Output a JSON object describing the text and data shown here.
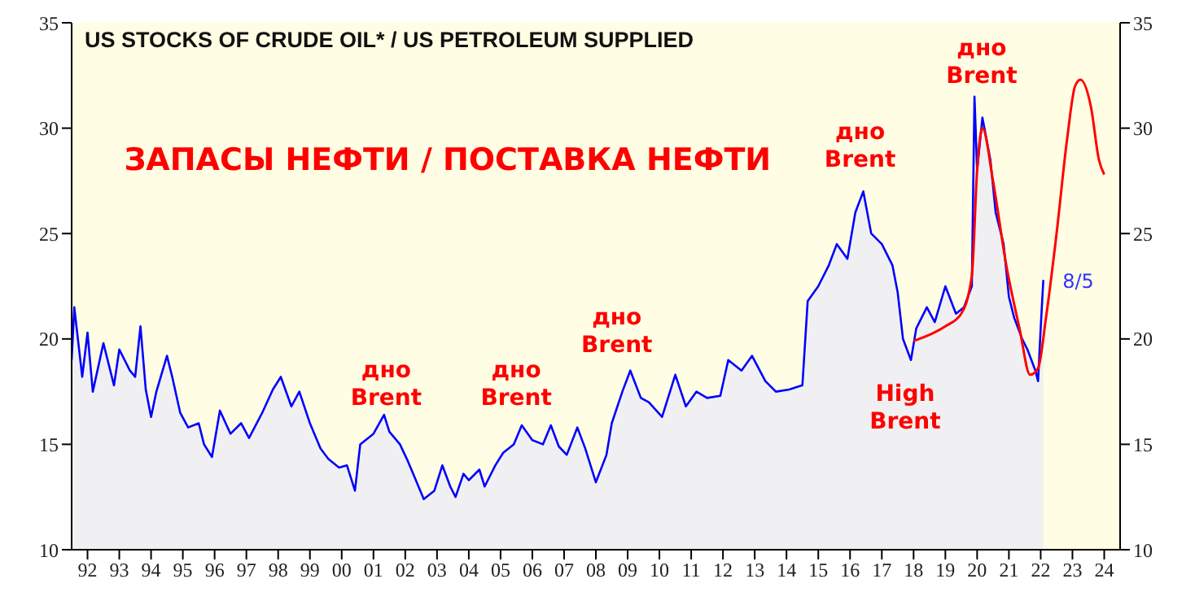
{
  "chart_data": {
    "type": "area",
    "title": "US STOCKS OF CRUDE OIL* / US PETROLEUM SUPPLIED",
    "annotations": [
      "ЗАПАСЫ НЕФТИ / ПОСТАВКА НЕФТИ",
      "дно\nBrent",
      "дно\nBrent",
      "дно\nBrent",
      "дно\nBrent",
      "дно\nBrent",
      "High\nBrent",
      "8/5"
    ],
    "xlim": [
      "1992",
      "2025"
    ],
    "xticks": [
      {
        "value": "1992-07",
        "label": "92"
      },
      {
        "value": "1993-07",
        "label": "93"
      },
      {
        "value": "1994-07",
        "label": "94"
      },
      {
        "value": "1995-07",
        "label": "95"
      },
      {
        "value": "1996-07",
        "label": "96"
      },
      {
        "value": "1997-07",
        "label": "97"
      },
      {
        "value": "1998-07",
        "label": "98"
      },
      {
        "value": "1999-07",
        "label": "99"
      },
      {
        "value": "2000-07",
        "label": "00"
      },
      {
        "value": "2001-07",
        "label": "01"
      },
      {
        "value": "2002-07",
        "label": "02"
      },
      {
        "value": "2003-07",
        "label": "03"
      },
      {
        "value": "2004-07",
        "label": "04"
      },
      {
        "value": "2005-07",
        "label": "05"
      },
      {
        "value": "2006-07",
        "label": "06"
      },
      {
        "value": "2007-07",
        "label": "07"
      },
      {
        "value": "2008-07",
        "label": "08"
      },
      {
        "value": "2009-07",
        "label": "09"
      },
      {
        "value": "2010-07",
        "label": "10"
      },
      {
        "value": "2011-07",
        "label": "11"
      },
      {
        "value": "2012-07",
        "label": "12"
      },
      {
        "value": "2013-07",
        "label": "13"
      },
      {
        "value": "2014-07",
        "label": "14"
      },
      {
        "value": "2015-07",
        "label": "15"
      },
      {
        "value": "2016-07",
        "label": "16"
      },
      {
        "value": "2017-07",
        "label": "17"
      },
      {
        "value": "2018-07",
        "label": "18"
      },
      {
        "value": "2019-07",
        "label": "19"
      },
      {
        "value": "2020-07",
        "label": "20"
      },
      {
        "value": "2021-07",
        "label": "21"
      },
      {
        "value": "2022-07",
        "label": "22"
      },
      {
        "value": "2023-07",
        "label": "23"
      },
      {
        "value": "2024-07",
        "label": "24"
      }
    ],
    "ylim": [
      10,
      35
    ],
    "yticks": [
      10,
      15,
      20,
      25,
      30,
      35
    ],
    "y2lim": [
      10,
      35
    ],
    "y2ticks": [
      10,
      15,
      20,
      25,
      30,
      35
    ],
    "grid": false,
    "legend": false,
    "series": [
      {
        "color": "#0000ff",
        "x": [
          "1992-01",
          "1992-02",
          "1992-05",
          "1992-07",
          "1992-09",
          "1993-01",
          "1993-05",
          "1993-07",
          "1993-11",
          "1994-01",
          "1994-03",
          "1994-05",
          "1994-07",
          "1994-09",
          "1995-01",
          "1995-03",
          "1995-06",
          "1995-09",
          "1996-01",
          "1996-03",
          "1996-06",
          "1996-09",
          "1997-01",
          "1997-05",
          "1997-08",
          "1998-01",
          "1998-05",
          "1998-08",
          "1998-12",
          "1999-03",
          "1999-07",
          "1999-11",
          "2000-02",
          "2000-06",
          "2000-09",
          "2000-12",
          "2001-02",
          "2001-07",
          "2001-11",
          "2002-01",
          "2002-05",
          "2002-08",
          "2002-12",
          "2003-02",
          "2003-06",
          "2003-09",
          "2003-12",
          "2004-02",
          "2004-05",
          "2004-07",
          "2004-11",
          "2005-01",
          "2005-05",
          "2005-08",
          "2005-12",
          "2006-03",
          "2006-07",
          "2006-11",
          "2007-02",
          "2007-05",
          "2007-08",
          "2007-12",
          "2008-03",
          "2008-07",
          "2008-11",
          "2009-01",
          "2009-05",
          "2009-08",
          "2009-12",
          "2010-03",
          "2010-08",
          "2011-01",
          "2011-05",
          "2011-09",
          "2012-01",
          "2012-06",
          "2012-09",
          "2013-02",
          "2013-06",
          "2013-11",
          "2014-03",
          "2014-08",
          "2015-01",
          "2015-03",
          "2015-07",
          "2015-11",
          "2016-02",
          "2016-06",
          "2016-09",
          "2016-12",
          "2017-03",
          "2017-07",
          "2017-11",
          "2018-01",
          "2018-03",
          "2018-06",
          "2018-08",
          "2018-12",
          "2019-03",
          "2019-07",
          "2019-11",
          "2020-02",
          "2020-05",
          "2020-06",
          "2020-07",
          "2020-09",
          "2020-12",
          "2021-02",
          "2021-05",
          "2021-07",
          "2021-09",
          "2021-12",
          "2022-02",
          "2022-05",
          "2022-06",
          "2022-07",
          "2022-08"
        ],
        "values": [
          19.0,
          21.5,
          18.2,
          20.3,
          17.5,
          19.8,
          17.8,
          19.5,
          18.5,
          18.2,
          20.6,
          17.6,
          16.3,
          17.5,
          19.2,
          18.2,
          16.5,
          15.8,
          16.0,
          15.0,
          14.4,
          16.6,
          15.5,
          16.0,
          15.3,
          16.5,
          17.6,
          18.2,
          16.8,
          17.5,
          16.0,
          14.8,
          14.3,
          13.9,
          14.0,
          12.8,
          15.0,
          15.5,
          16.4,
          15.6,
          15.0,
          14.2,
          13.0,
          12.4,
          12.8,
          14.0,
          13.0,
          12.5,
          13.6,
          13.3,
          13.8,
          13.0,
          14.0,
          14.6,
          15.0,
          15.9,
          15.2,
          15.0,
          15.9,
          14.9,
          14.5,
          15.8,
          14.8,
          13.2,
          14.5,
          16.0,
          17.5,
          18.5,
          17.2,
          17.0,
          16.3,
          18.3,
          16.8,
          17.5,
          17.2,
          17.3,
          19.0,
          18.5,
          19.2,
          18.0,
          17.5,
          17.6,
          17.8,
          21.8,
          22.5,
          23.5,
          24.5,
          23.8,
          26.0,
          27.0,
          25.0,
          24.5,
          23.5,
          22.2,
          20.0,
          19.0,
          20.5,
          21.5,
          20.8,
          22.5,
          21.2,
          21.5,
          22.5,
          31.5,
          28.0,
          30.5,
          28.5,
          26.0,
          24.5,
          22.0,
          21.0,
          20.0,
          19.5,
          18.5,
          18.0,
          20.5,
          22.8
        ]
      },
      {
        "type": "line",
        "color": "#ff0000",
        "x": [
          "2018-07",
          "2019-07",
          "2020-01",
          "2020-05",
          "2020-07",
          "2020-09",
          "2021-01",
          "2021-06",
          "2021-11",
          "2022-03",
          "2022-06",
          "2022-09",
          "2023-01",
          "2023-05",
          "2023-08",
          "2023-10",
          "2024-02",
          "2024-05",
          "2024-07"
        ],
        "values": [
          19.9,
          20.6,
          21.2,
          23.0,
          28.0,
          30.0,
          27.5,
          23.5,
          20.5,
          18.3,
          18.6,
          21.0,
          25.0,
          29.5,
          32.0,
          32.3,
          31.0,
          28.5,
          27.8
        ]
      }
    ]
  }
}
